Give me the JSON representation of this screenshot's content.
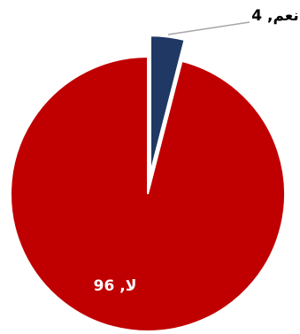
{
  "chart_data": {
    "type": "pie",
    "values": [
      4,
      96
    ],
    "value_labels": [
      "نعم, 4",
      "لا, 96"
    ],
    "colors": [
      "#1f3864",
      "#c00000"
    ]
  }
}
